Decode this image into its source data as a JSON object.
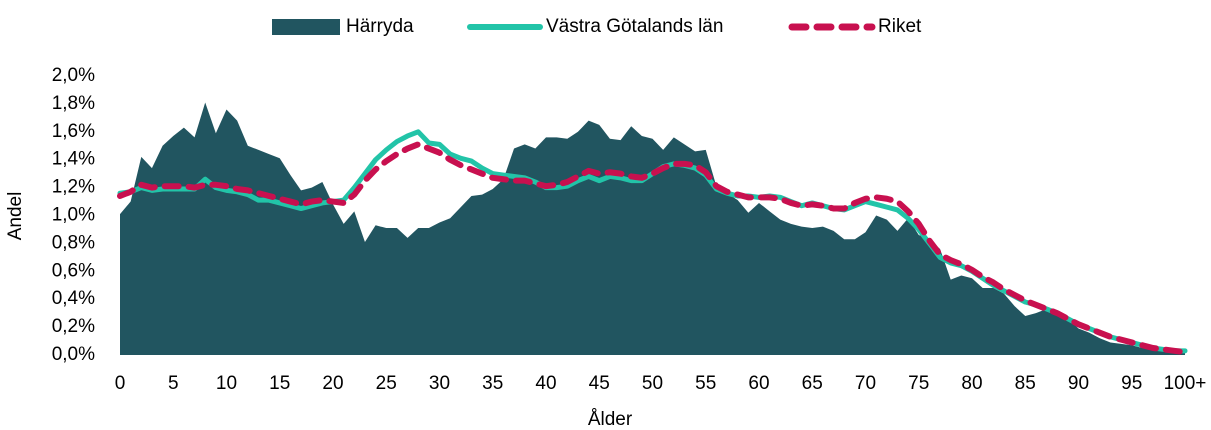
{
  "chart_data": {
    "type": "area_line",
    "x_label": "Ålder",
    "y_label": "Andel",
    "categories": [
      "0",
      null,
      null,
      null,
      null,
      "5",
      null,
      null,
      null,
      null,
      "10",
      null,
      null,
      null,
      null,
      "15",
      null,
      null,
      null,
      null,
      "20",
      null,
      null,
      null,
      null,
      "25",
      null,
      null,
      null,
      null,
      "30",
      null,
      null,
      null,
      null,
      "35",
      null,
      null,
      null,
      null,
      "40",
      null,
      null,
      null,
      null,
      "45",
      null,
      null,
      null,
      null,
      "50",
      null,
      null,
      null,
      null,
      "55",
      null,
      null,
      null,
      null,
      "60",
      null,
      null,
      null,
      null,
      "65",
      null,
      null,
      null,
      null,
      "70",
      null,
      null,
      null,
      null,
      "75",
      null,
      null,
      null,
      null,
      "80",
      null,
      null,
      null,
      null,
      "85",
      null,
      null,
      null,
      null,
      "90",
      null,
      null,
      null,
      null,
      "95",
      null,
      null,
      null,
      null,
      "100+"
    ],
    "ylim": [
      0,
      2.0
    ],
    "yticks": [
      {
        "value": 0,
        "label": "0,0%"
      },
      {
        "value": 0.2,
        "label": "0,2%"
      },
      {
        "value": 0.4,
        "label": "0,4%"
      },
      {
        "value": 0.6,
        "label": "0,6%"
      },
      {
        "value": 0.8,
        "label": "0,8%"
      },
      {
        "value": 1.0,
        "label": "1,0%"
      },
      {
        "value": 1.2,
        "label": "1,2%"
      },
      {
        "value": 1.4,
        "label": "1,4%"
      },
      {
        "value": 1.6,
        "label": "1,6%"
      },
      {
        "value": 1.8,
        "label": "1,8%"
      },
      {
        "value": 2.0,
        "label": "2,0%"
      }
    ],
    "series": [
      {
        "name": "Härryda",
        "kind": "area",
        "color": "#215560",
        "values": [
          1.01,
          1.1,
          1.42,
          1.34,
          1.5,
          1.57,
          1.63,
          1.56,
          1.81,
          1.59,
          1.76,
          1.68,
          1.5,
          1.47,
          1.44,
          1.41,
          1.29,
          1.18,
          1.2,
          1.24,
          1.08,
          0.94,
          1.03,
          0.81,
          0.93,
          0.91,
          0.91,
          0.84,
          0.91,
          0.91,
          0.95,
          0.98,
          1.06,
          1.14,
          1.15,
          1.19,
          1.26,
          1.48,
          1.51,
          1.48,
          1.56,
          1.56,
          1.55,
          1.6,
          1.68,
          1.65,
          1.55,
          1.54,
          1.64,
          1.57,
          1.55,
          1.47,
          1.56,
          1.51,
          1.46,
          1.47,
          1.21,
          1.16,
          1.11,
          1.02,
          1.09,
          1.03,
          0.97,
          0.94,
          0.92,
          0.91,
          0.92,
          0.89,
          0.83,
          0.83,
          0.88,
          1.0,
          0.97,
          0.89,
          0.98,
          0.86,
          0.83,
          0.76,
          0.54,
          0.57,
          0.55,
          0.48,
          0.48,
          0.44,
          0.35,
          0.28,
          0.3,
          0.33,
          0.28,
          0.26,
          0.19,
          0.16,
          0.12,
          0.09,
          0.08,
          0.07,
          0.05,
          0.04,
          0.03,
          0.02,
          0.02
        ]
      },
      {
        "name": "Västra Götalands län",
        "kind": "line",
        "color": "#22c4a8",
        "values": [
          1.16,
          1.17,
          1.2,
          1.18,
          1.19,
          1.19,
          1.19,
          1.19,
          1.26,
          1.2,
          1.18,
          1.17,
          1.15,
          1.11,
          1.11,
          1.09,
          1.07,
          1.05,
          1.07,
          1.09,
          1.1,
          1.11,
          1.2,
          1.3,
          1.4,
          1.47,
          1.53,
          1.57,
          1.6,
          1.52,
          1.51,
          1.44,
          1.41,
          1.39,
          1.34,
          1.3,
          1.29,
          1.28,
          1.27,
          1.24,
          1.2,
          1.2,
          1.21,
          1.25,
          1.28,
          1.25,
          1.28,
          1.27,
          1.25,
          1.25,
          1.3,
          1.35,
          1.37,
          1.36,
          1.34,
          1.29,
          1.19,
          1.16,
          1.14,
          1.14,
          1.13,
          1.14,
          1.13,
          1.1,
          1.07,
          1.09,
          1.07,
          1.05,
          1.04,
          1.07,
          1.1,
          1.08,
          1.06,
          1.04,
          0.98,
          0.9,
          0.8,
          0.7,
          0.66,
          0.64,
          0.6,
          0.55,
          0.5,
          0.46,
          0.42,
          0.38,
          0.36,
          0.33,
          0.3,
          0.26,
          0.22,
          0.19,
          0.16,
          0.13,
          0.11,
          0.09,
          0.07,
          0.05,
          0.04,
          0.03,
          0.03
        ]
      },
      {
        "name": "Riket",
        "kind": "dashed",
        "color": "#c8104f",
        "values": [
          1.14,
          1.17,
          1.22,
          1.2,
          1.21,
          1.21,
          1.21,
          1.2,
          1.22,
          1.22,
          1.21,
          1.19,
          1.18,
          1.16,
          1.14,
          1.12,
          1.1,
          1.08,
          1.1,
          1.11,
          1.1,
          1.09,
          1.15,
          1.25,
          1.33,
          1.39,
          1.44,
          1.48,
          1.51,
          1.48,
          1.45,
          1.4,
          1.36,
          1.33,
          1.3,
          1.27,
          1.26,
          1.25,
          1.25,
          1.23,
          1.21,
          1.22,
          1.24,
          1.28,
          1.32,
          1.3,
          1.31,
          1.3,
          1.28,
          1.27,
          1.3,
          1.34,
          1.37,
          1.37,
          1.36,
          1.31,
          1.21,
          1.17,
          1.15,
          1.13,
          1.13,
          1.13,
          1.12,
          1.09,
          1.07,
          1.08,
          1.07,
          1.05,
          1.05,
          1.09,
          1.12,
          1.13,
          1.12,
          1.1,
          1.03,
          0.94,
          0.82,
          0.72,
          0.68,
          0.65,
          0.61,
          0.56,
          0.52,
          0.47,
          0.43,
          0.39,
          0.36,
          0.33,
          0.3,
          0.26,
          0.22,
          0.19,
          0.16,
          0.13,
          0.11,
          0.09,
          0.07,
          0.05,
          0.04,
          0.03,
          0.02
        ]
      }
    ],
    "legend": "top"
  }
}
